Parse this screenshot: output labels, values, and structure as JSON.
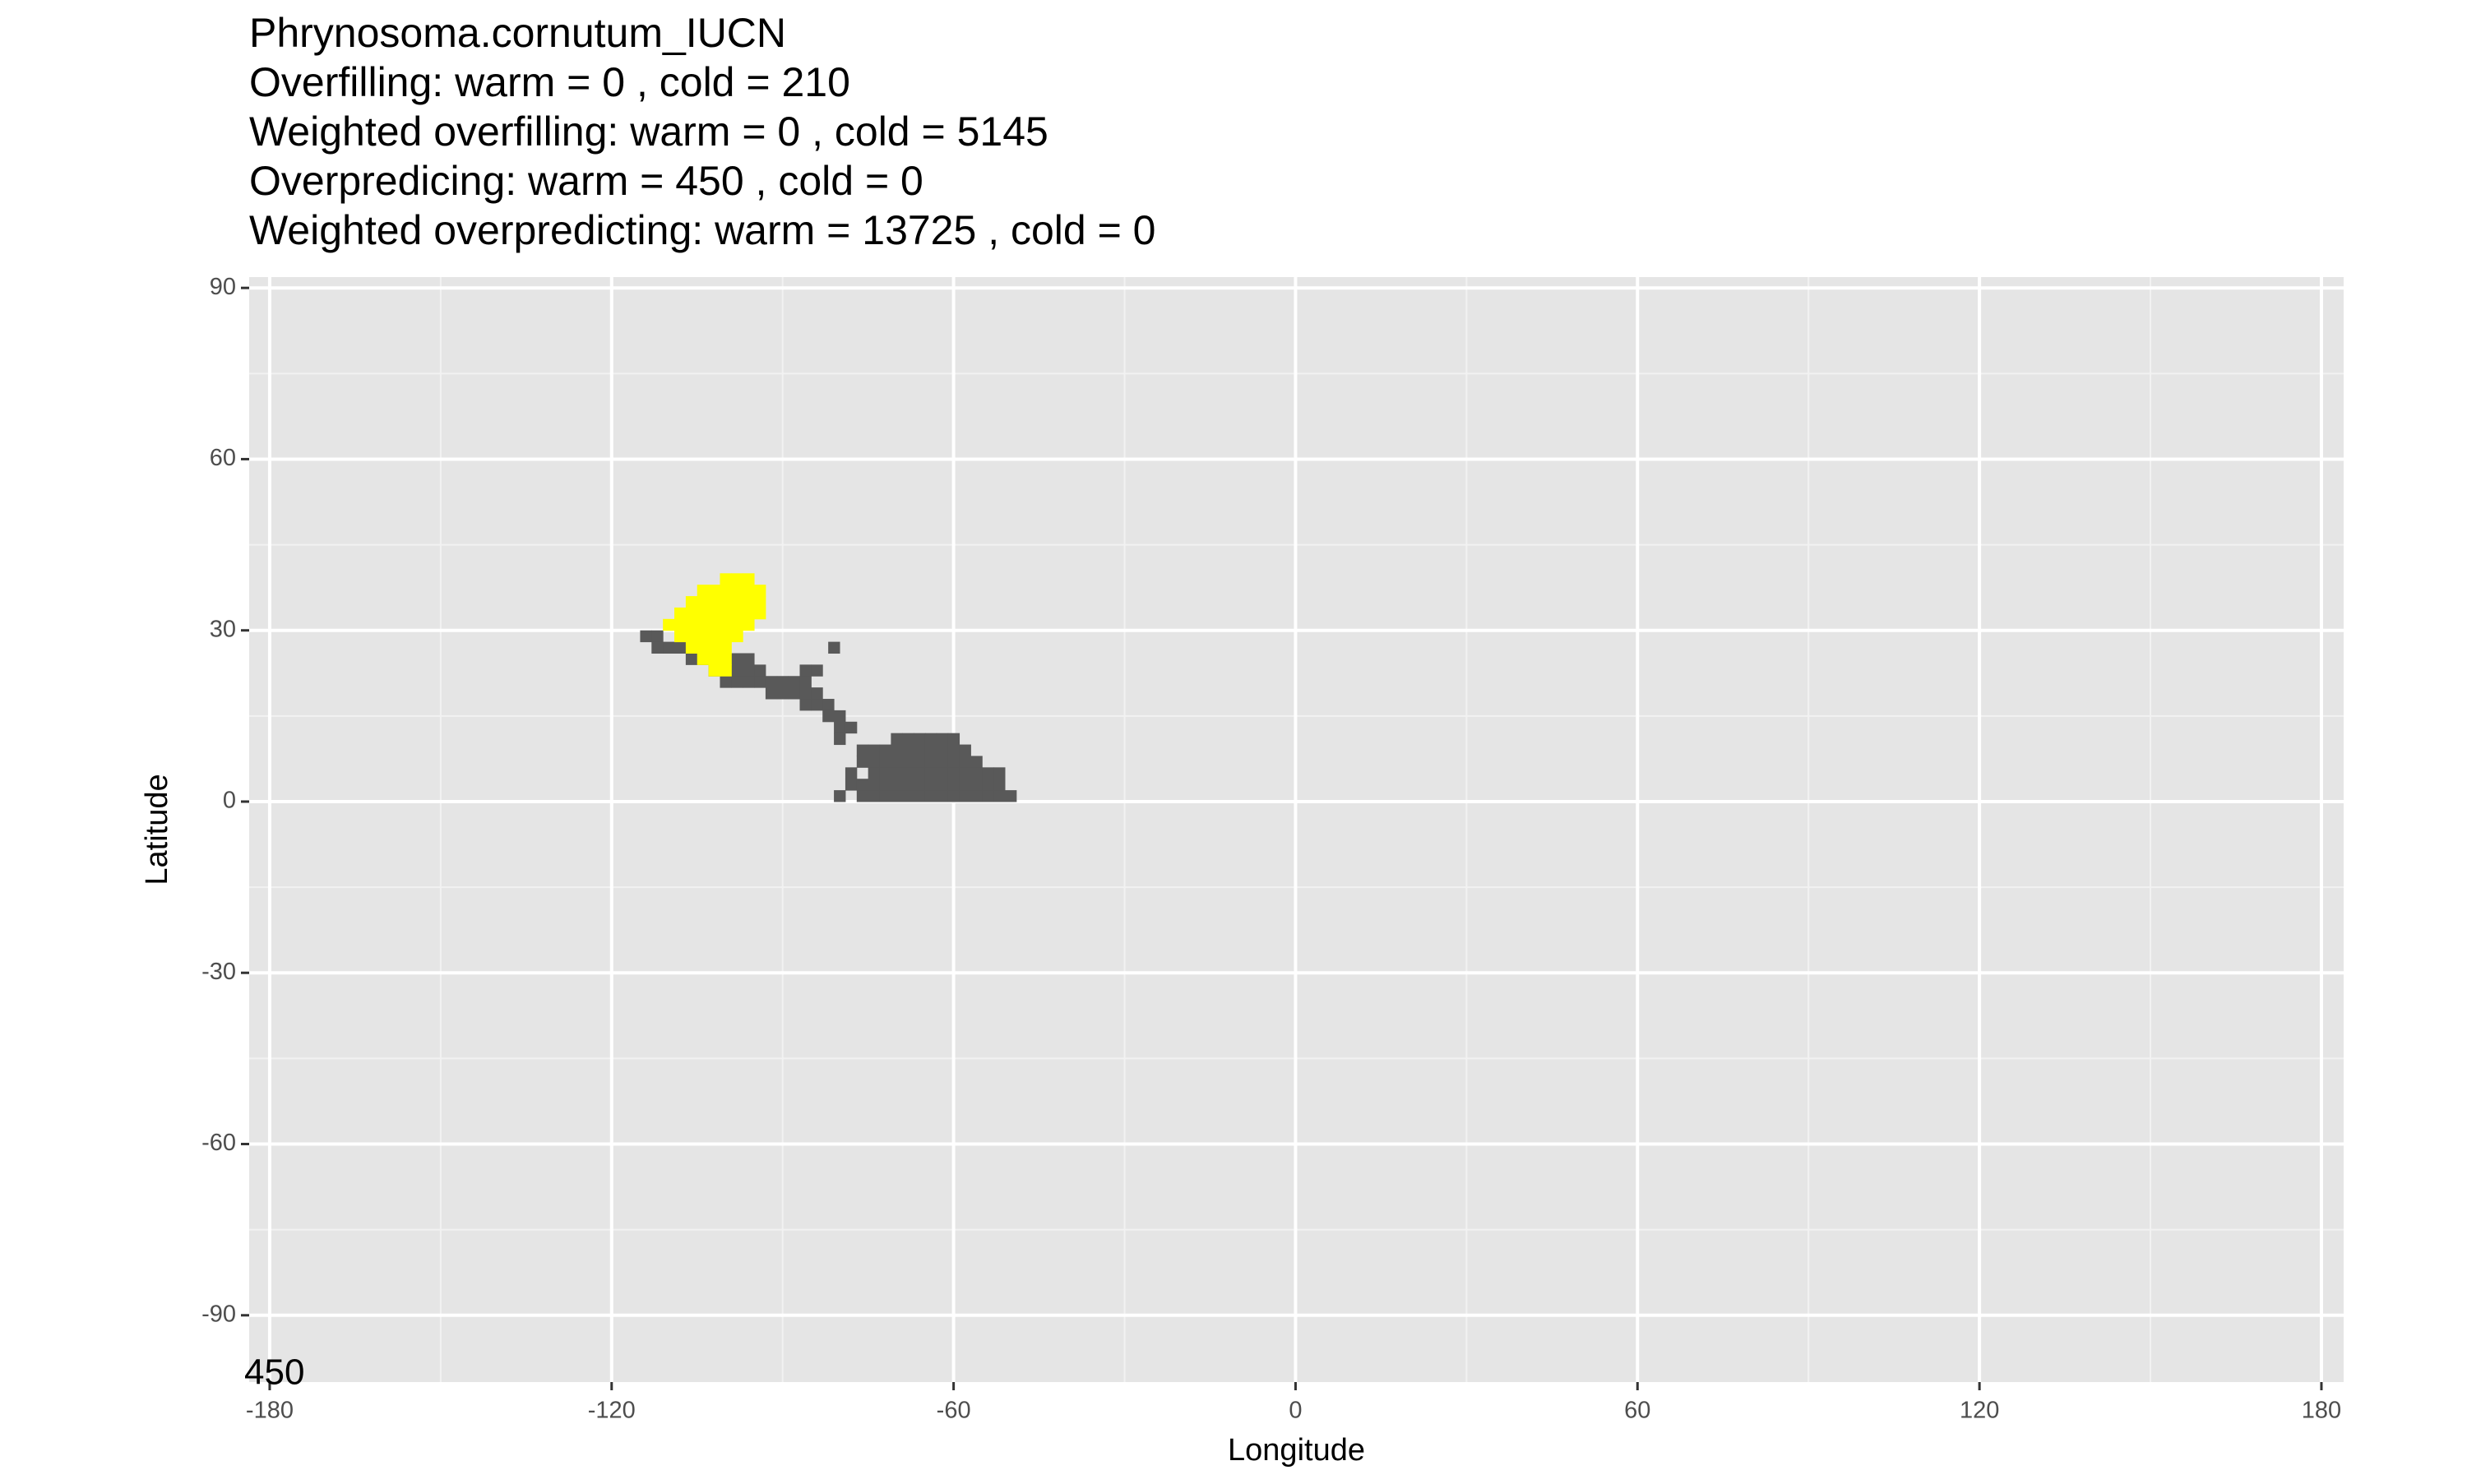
{
  "chart_data": {
    "type": "tile",
    "title": [
      "Phrynosoma.cornutum_IUCN",
      "Overfilling: warm =  0  , cold =  210",
      "Weighted overfilling: warm =  0 , cold =  5145",
      "Overpredicing: warm =  450  , cold =  0",
      "Weighted overpredicting: warm =  13725 , cold =  0"
    ],
    "xlabel": "Longitude",
    "ylabel": "Latitude",
    "annotation": "450",
    "xlim": [
      -183.6,
      183.9
    ],
    "ylim": [
      -101.7,
      91.9
    ],
    "xticks": [
      -180,
      -120,
      -60,
      0,
      60,
      120,
      180
    ],
    "yticks": [
      -90,
      -60,
      -30,
      0,
      30,
      60,
      90
    ],
    "grid": true,
    "background": "#e5e5e5",
    "layers": [
      {
        "color": "#595959",
        "x": [
          -114,
          -112,
          -112,
          -110,
          -108,
          -81,
          -106,
          -104,
          -98,
          -96,
          -102,
          -100,
          -98,
          -96,
          -94,
          -86,
          -84,
          -100,
          -98,
          -96,
          -94,
          -92,
          -90,
          -88,
          -86,
          -92,
          -90,
          -88,
          -86,
          -84,
          -86,
          -84,
          -82,
          -82,
          -80,
          -80,
          -78,
          -80,
          -70,
          -68,
          -66,
          -64,
          -62,
          -60,
          -76,
          -74,
          -72,
          -70,
          -68,
          -66,
          -64,
          -62,
          -60,
          -58,
          -76,
          -74,
          -72,
          -70,
          -68,
          -66,
          -64,
          -62,
          -60,
          -58,
          -56,
          -78,
          -74,
          -72,
          -70,
          -68,
          -66,
          -64,
          -62,
          -60,
          -58,
          -56,
          -54,
          -52,
          -78,
          -76,
          -74,
          -72,
          -70,
          -68,
          -66,
          -64,
          -62,
          -60,
          -58,
          -56,
          -54,
          -52,
          -80,
          -76,
          -74,
          -72,
          -70,
          -68,
          -66,
          -64,
          -62,
          -60,
          -58,
          -56,
          -54,
          -52,
          -50
        ],
        "y": [
          29,
          29,
          27,
          27,
          27,
          27,
          25,
          25,
          25,
          25,
          23,
          23,
          23,
          23,
          23,
          23,
          23,
          21,
          21,
          21,
          21,
          21,
          21,
          21,
          21,
          19,
          19,
          19,
          19,
          19,
          17,
          17,
          17,
          15,
          15,
          13,
          13,
          11,
          11,
          11,
          11,
          11,
          11,
          11,
          9,
          9,
          9,
          9,
          9,
          9,
          9,
          9,
          9,
          9,
          7,
          7,
          7,
          7,
          7,
          7,
          7,
          7,
          7,
          7,
          7,
          5,
          5,
          5,
          5,
          5,
          5,
          5,
          5,
          5,
          5,
          5,
          5,
          5,
          3,
          3,
          3,
          3,
          3,
          3,
          3,
          3,
          3,
          3,
          3,
          3,
          3,
          3,
          1,
          1,
          1,
          1,
          1,
          1,
          1,
          1,
          1,
          1,
          1,
          1,
          1,
          1,
          1
        ]
      },
      {
        "color": "#ffff00",
        "x": [
          -100,
          -98,
          -96,
          -104,
          -102,
          -100,
          -98,
          -96,
          -94,
          -106,
          -104,
          -102,
          -100,
          -98,
          -96,
          -94,
          -108,
          -106,
          -104,
          -102,
          -100,
          -98,
          -96,
          -94,
          -110,
          -108,
          -106,
          -104,
          -102,
          -100,
          -98,
          -96,
          -108,
          -106,
          -104,
          -102,
          -100,
          -98,
          -106,
          -104,
          -102,
          -100,
          -104,
          -102,
          -100,
          -102,
          -100
        ],
        "y": [
          39,
          39,
          39,
          37,
          37,
          37,
          37,
          37,
          37,
          35,
          35,
          35,
          35,
          35,
          35,
          35,
          33,
          33,
          33,
          33,
          33,
          33,
          33,
          33,
          31,
          31,
          31,
          31,
          31,
          31,
          31,
          31,
          29,
          29,
          29,
          29,
          29,
          29,
          27,
          27,
          27,
          27,
          25,
          25,
          25,
          23,
          23
        ]
      }
    ]
  }
}
